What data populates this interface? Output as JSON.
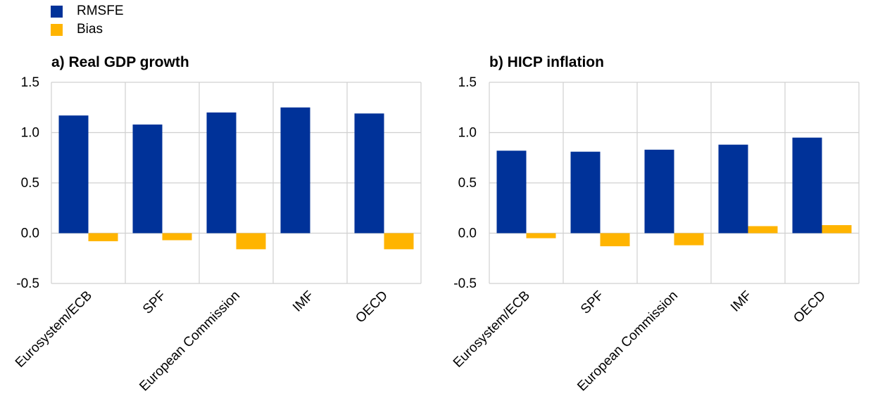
{
  "legend": [
    {
      "name": "RMSFE",
      "color": "#003299"
    },
    {
      "name": "Bias",
      "color": "#FFB400"
    }
  ],
  "chart_data": [
    {
      "type": "bar",
      "title": "a) Real GDP growth",
      "categories": [
        "Eurosystem/ECB",
        "SPF",
        "European Commission",
        "IMF",
        "OECD"
      ],
      "series": [
        {
          "name": "RMSFE",
          "values": [
            1.17,
            1.08,
            1.2,
            1.25,
            1.19
          ]
        },
        {
          "name": "Bias",
          "values": [
            -0.08,
            -0.07,
            -0.16,
            0.0,
            -0.16
          ]
        }
      ],
      "ylim": [
        -0.5,
        1.5
      ],
      "yticks": [
        "1.5",
        "1.0",
        "0.5",
        "0.0",
        "-0.5"
      ],
      "grid": true
    },
    {
      "type": "bar",
      "title": "b) HICP inflation",
      "categories": [
        "Eurosystem/ECB",
        "SPF",
        "European Commission",
        "IMF",
        "OECD"
      ],
      "series": [
        {
          "name": "RMSFE",
          "values": [
            0.82,
            0.81,
            0.83,
            0.88,
            0.95
          ]
        },
        {
          "name": "Bias",
          "values": [
            -0.05,
            -0.13,
            -0.12,
            0.07,
            0.08
          ]
        }
      ],
      "ylim": [
        -0.5,
        1.5
      ],
      "yticks": [
        "1.5",
        "1.0",
        "0.5",
        "0.0",
        "-0.5"
      ],
      "grid": true
    }
  ]
}
